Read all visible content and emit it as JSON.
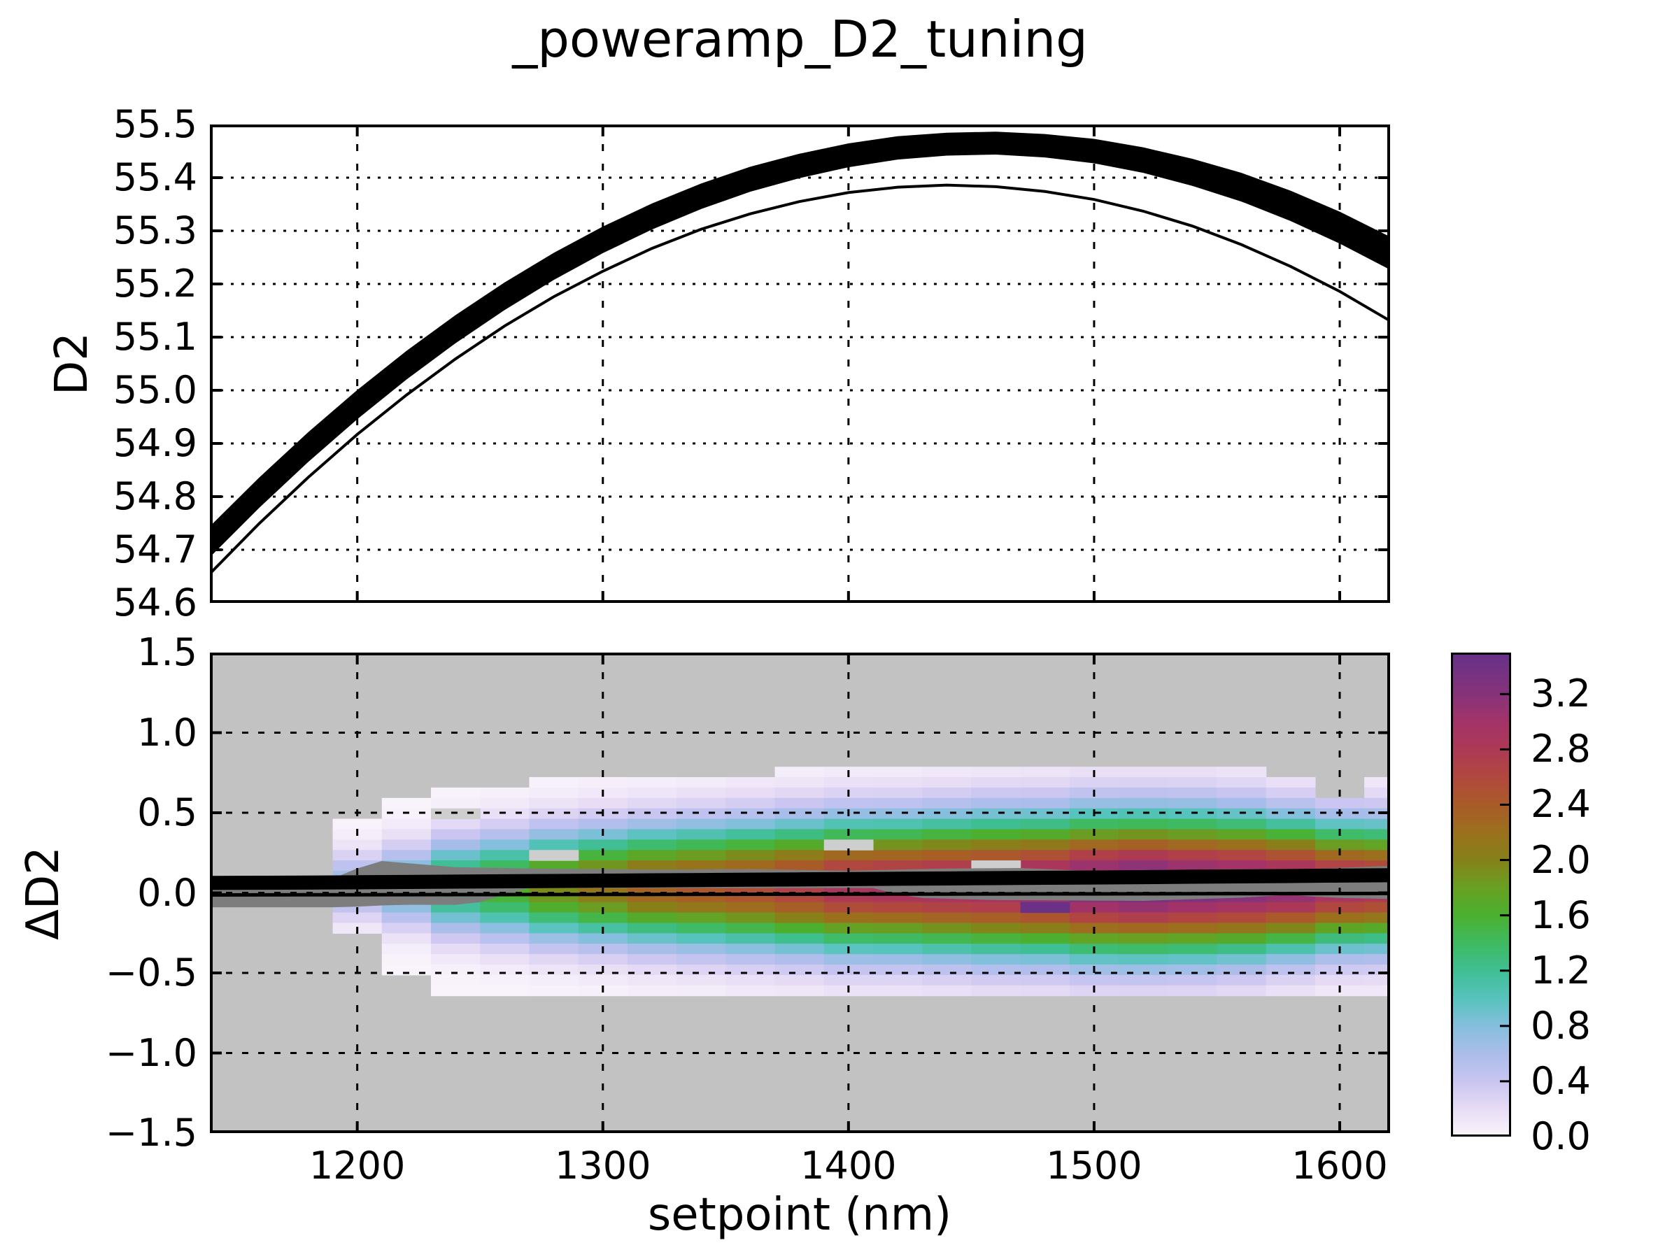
{
  "figure": {
    "title": "_poweramp_D2_tuning"
  },
  "top_plot": {
    "ylabel": "D2",
    "ytick_labels": [
      "55.5",
      "55.4",
      "55.3",
      "55.2",
      "55.1",
      "55.0",
      "54.9",
      "54.8",
      "54.7",
      "54.6"
    ],
    "yticks": [
      55.5,
      55.4,
      55.3,
      55.2,
      55.1,
      55.0,
      54.9,
      54.8,
      54.7,
      54.6
    ],
    "ylim": [
      54.6,
      55.5
    ],
    "xlim": [
      1140,
      1620.5
    ],
    "xgrid": [
      1200,
      1300,
      1400,
      1500,
      1600
    ]
  },
  "bottom_plot": {
    "ylabel": "ΔD2",
    "xlabel": "setpoint (nm)",
    "ytick_labels": [
      "1.5",
      "1.0",
      "0.5",
      "0.0",
      "−0.5",
      "−1.0",
      "−1.5"
    ],
    "yticks": [
      1.5,
      1.0,
      0.5,
      0.0,
      -0.5,
      -1.0,
      -1.5
    ],
    "xtick_labels": [
      "1200",
      "1300",
      "1400",
      "1500",
      "1600"
    ],
    "xticks": [
      1200,
      1300,
      1400,
      1500,
      1600
    ],
    "ylim": [
      -1.5,
      1.5
    ],
    "xlim": [
      1140,
      1620.5
    ],
    "bg_color": "#c2c2c2",
    "hole_color": "#cecece",
    "gray_band_color": "#7d7d7d"
  },
  "colorbar": {
    "tick_labels": [
      "0.0",
      "0.4",
      "0.8",
      "1.2",
      "1.6",
      "2.0",
      "2.4",
      "2.8",
      "3.2"
    ],
    "ticks": [
      0.0,
      0.4,
      0.8,
      1.2,
      1.6,
      2.0,
      2.4,
      2.8,
      3.2
    ],
    "vmin": 0.0,
    "vmax": 3.5,
    "stops": [
      [
        0.0,
        "#faf5fc"
      ],
      [
        0.2,
        "#e7dcf5"
      ],
      [
        0.4,
        "#c9c5f1"
      ],
      [
        0.6,
        "#abbdea"
      ],
      [
        0.8,
        "#84bfdd"
      ],
      [
        1.0,
        "#57c3bd"
      ],
      [
        1.2,
        "#3fbe93"
      ],
      [
        1.4,
        "#3fba60"
      ],
      [
        1.6,
        "#4bb02f"
      ],
      [
        1.8,
        "#68a023"
      ],
      [
        2.0,
        "#868119"
      ],
      [
        2.2,
        "#9b701d"
      ],
      [
        2.4,
        "#a95b28"
      ],
      [
        2.6,
        "#b1483f"
      ],
      [
        2.8,
        "#ad3955"
      ],
      [
        3.0,
        "#a33369"
      ],
      [
        3.2,
        "#86337a"
      ],
      [
        3.5,
        "#663189"
      ]
    ]
  },
  "chart_data": [
    {
      "id": "d2_vs_setpoint",
      "type": "line",
      "title": "_poweramp_D2_tuning",
      "xlabel": "",
      "ylabel": "D2",
      "ylim": [
        54.6,
        55.5
      ],
      "xlim": [
        1140,
        1620.5
      ],
      "grid": "dotted",
      "x": [
        1140,
        1160,
        1180,
        1200,
        1220,
        1240,
        1260,
        1280,
        1300,
        1320,
        1340,
        1360,
        1380,
        1400,
        1420,
        1440,
        1460,
        1480,
        1500,
        1520,
        1540,
        1560,
        1580,
        1600,
        1620
      ],
      "series": [
        {
          "name": "thick_band_mean",
          "values": [
            54.715,
            54.807,
            54.893,
            54.973,
            55.047,
            55.115,
            55.177,
            55.233,
            55.283,
            55.327,
            55.365,
            55.397,
            55.422,
            55.442,
            55.456,
            55.463,
            55.465,
            55.46,
            55.45,
            55.433,
            55.41,
            55.382,
            55.347,
            55.306,
            55.259
          ]
        },
        {
          "name": "thick_band_halfwidth",
          "values": [
            0.029,
            0.0285,
            0.028,
            0.0275,
            0.027,
            0.0265,
            0.026,
            0.0255,
            0.025,
            0.0245,
            0.024,
            0.0235,
            0.023,
            0.0225,
            0.022,
            0.0215,
            0.0215,
            0.022,
            0.023,
            0.024,
            0.0255,
            0.027,
            0.0285,
            0.03,
            0.031
          ]
        },
        {
          "name": "thin_line",
          "values": [
            54.655,
            54.749,
            54.836,
            54.917,
            54.991,
            55.059,
            55.121,
            55.176,
            55.224,
            55.267,
            55.303,
            55.332,
            55.355,
            55.372,
            55.382,
            55.386,
            55.383,
            55.374,
            55.359,
            55.337,
            55.309,
            55.274,
            55.233,
            55.186,
            55.132
          ]
        }
      ]
    },
    {
      "id": "delta_d2_vs_setpoint",
      "type": "heatmap",
      "xlabel": "setpoint (nm)",
      "ylabel": "ΔD2",
      "ylim": [
        -1.5,
        1.5
      ],
      "xlim": [
        1140,
        1620.5
      ],
      "bin_width_nm": 20,
      "bin_height": 0.065,
      "profile_center": 0.045,
      "row_centers": [
        0.755,
        0.69,
        0.625,
        0.56,
        0.495,
        0.43,
        0.365,
        0.3,
        0.235,
        0.17,
        0.105,
        0.04,
        -0.025,
        -0.09,
        -0.155,
        -0.22,
        -0.285,
        -0.35,
        -0.415,
        -0.48,
        -0.545,
        -0.61
      ],
      "columns": [
        {
          "x": 1200,
          "amp": 0.7,
          "sigma": 0.2,
          "top": 0.45,
          "bottom": -0.26
        },
        {
          "x": 1220,
          "amp": 1.0,
          "sigma": 0.24,
          "top": 0.58,
          "bottom": -0.5
        },
        {
          "x": 1240,
          "amp": 1.45,
          "sigma": 0.28,
          "top": 0.66,
          "bottom": -0.62
        },
        {
          "x": 1260,
          "amp": 1.65,
          "sigma": 0.3,
          "top": 0.66,
          "bottom": -0.62
        },
        {
          "x": 1280,
          "amp": 1.95,
          "sigma": 0.32,
          "top": 0.73,
          "bottom": -0.68
        },
        {
          "x": 1300,
          "amp": 2.15,
          "sigma": 0.33,
          "top": 0.73,
          "bottom": -0.68
        },
        {
          "x": 1320,
          "amp": 2.35,
          "sigma": 0.34,
          "top": 0.73,
          "bottom": -0.68
        },
        {
          "x": 1340,
          "amp": 2.45,
          "sigma": 0.35,
          "top": 0.73,
          "bottom": -0.75
        },
        {
          "x": 1360,
          "amp": 2.55,
          "sigma": 0.36,
          "top": 0.73,
          "bottom": -0.75
        },
        {
          "x": 1380,
          "amp": 2.7,
          "sigma": 0.37,
          "top": 0.79,
          "bottom": -0.75
        },
        {
          "x": 1400,
          "amp": 2.9,
          "sigma": 0.38,
          "top": 0.79,
          "bottom": -0.75
        },
        {
          "x": 1420,
          "amp": 2.95,
          "sigma": 0.38,
          "top": 0.79,
          "bottom": -0.75
        },
        {
          "x": 1440,
          "amp": 3.0,
          "sigma": 0.39,
          "top": 0.82,
          "bottom": -0.75
        },
        {
          "x": 1460,
          "amp": 3.05,
          "sigma": 0.4,
          "top": 0.82,
          "bottom": -0.75
        },
        {
          "x": 1480,
          "amp": 3.15,
          "sigma": 0.4,
          "top": 0.82,
          "bottom": -0.68
        },
        {
          "x": 1500,
          "amp": 3.35,
          "sigma": 0.41,
          "top": 0.82,
          "bottom": -0.68
        },
        {
          "x": 1520,
          "amp": 3.45,
          "sigma": 0.41,
          "top": 0.82,
          "bottom": -0.68
        },
        {
          "x": 1540,
          "amp": 3.35,
          "sigma": 0.41,
          "top": 0.82,
          "bottom": -0.68
        },
        {
          "x": 1560,
          "amp": 3.3,
          "sigma": 0.4,
          "top": 0.82,
          "bottom": -0.68
        },
        {
          "x": 1580,
          "amp": 3.2,
          "sigma": 0.38,
          "top": 0.75,
          "bottom": -0.68
        },
        {
          "x": 1600,
          "amp": 3.0,
          "sigma": 0.36,
          "top": 0.58,
          "bottom": -0.62
        },
        {
          "x": 1620,
          "amp": 2.9,
          "sigma": 0.36,
          "top": 0.73,
          "bottom": -0.62
        }
      ],
      "holes": [
        {
          "x": 1240,
          "y": 0.495
        },
        {
          "x": 1280,
          "y": 0.235
        },
        {
          "x": 1400,
          "y": 0.3
        },
        {
          "x": 1460,
          "y": 0.17
        }
      ],
      "extra_cells": [
        {
          "x": 1480,
          "y": -0.09,
          "value": 3.45
        }
      ],
      "lines": {
        "x": [
          1140,
          1160,
          1180,
          1200,
          1220,
          1240,
          1260,
          1280,
          1300,
          1320,
          1340,
          1360,
          1380,
          1400,
          1420,
          1440,
          1460,
          1480,
          1500,
          1520,
          1540,
          1560,
          1580,
          1600,
          1620
        ],
        "thick_mean": [
          0.062,
          0.063,
          0.064,
          0.066,
          0.068,
          0.07,
          0.072,
          0.074,
          0.076,
          0.078,
          0.08,
          0.082,
          0.084,
          0.086,
          0.088,
          0.09,
          0.092,
          0.094,
          0.096,
          0.098,
          0.101,
          0.103,
          0.105,
          0.108,
          0.11
        ],
        "thick_halfwidth": 0.044,
        "thin": [
          -0.013,
          -0.0126,
          -0.0122,
          -0.0119,
          -0.0115,
          -0.0111,
          -0.0108,
          -0.0104,
          -0.01,
          -0.0096,
          -0.0093,
          -0.0089,
          -0.0085,
          -0.0081,
          -0.0078,
          -0.0074,
          -0.007,
          -0.0066,
          -0.0063,
          -0.0059,
          -0.0055,
          -0.0051,
          -0.0048,
          -0.0044,
          -0.004
        ]
      },
      "gray_band": {
        "upper": [
          [
            1140,
            0.068
          ],
          [
            1180,
            0.068
          ],
          [
            1195,
            0.1
          ],
          [
            1205,
            0.205
          ],
          [
            1240,
            0.16
          ],
          [
            1280,
            0.15
          ],
          [
            1320,
            0.145
          ],
          [
            1360,
            0.148
          ],
          [
            1400,
            0.138
          ],
          [
            1440,
            0.152
          ],
          [
            1470,
            0.155
          ],
          [
            1500,
            0.135
          ],
          [
            1530,
            0.122
          ],
          [
            1560,
            0.128
          ],
          [
            1590,
            0.15
          ],
          [
            1620,
            0.168
          ]
        ],
        "lower": [
          [
            1140,
            -0.09
          ],
          [
            1195,
            -0.09
          ],
          [
            1215,
            -0.075
          ],
          [
            1240,
            -0.075
          ],
          [
            1255,
            -0.05
          ],
          [
            1265,
            0.03
          ],
          [
            1410,
            0.03
          ],
          [
            1425,
            -0.03
          ],
          [
            1460,
            -0.045
          ],
          [
            1520,
            -0.05
          ],
          [
            1560,
            -0.03
          ],
          [
            1580,
            -0.012
          ],
          [
            1595,
            -0.03
          ],
          [
            1620,
            -0.038
          ]
        ]
      }
    }
  ]
}
